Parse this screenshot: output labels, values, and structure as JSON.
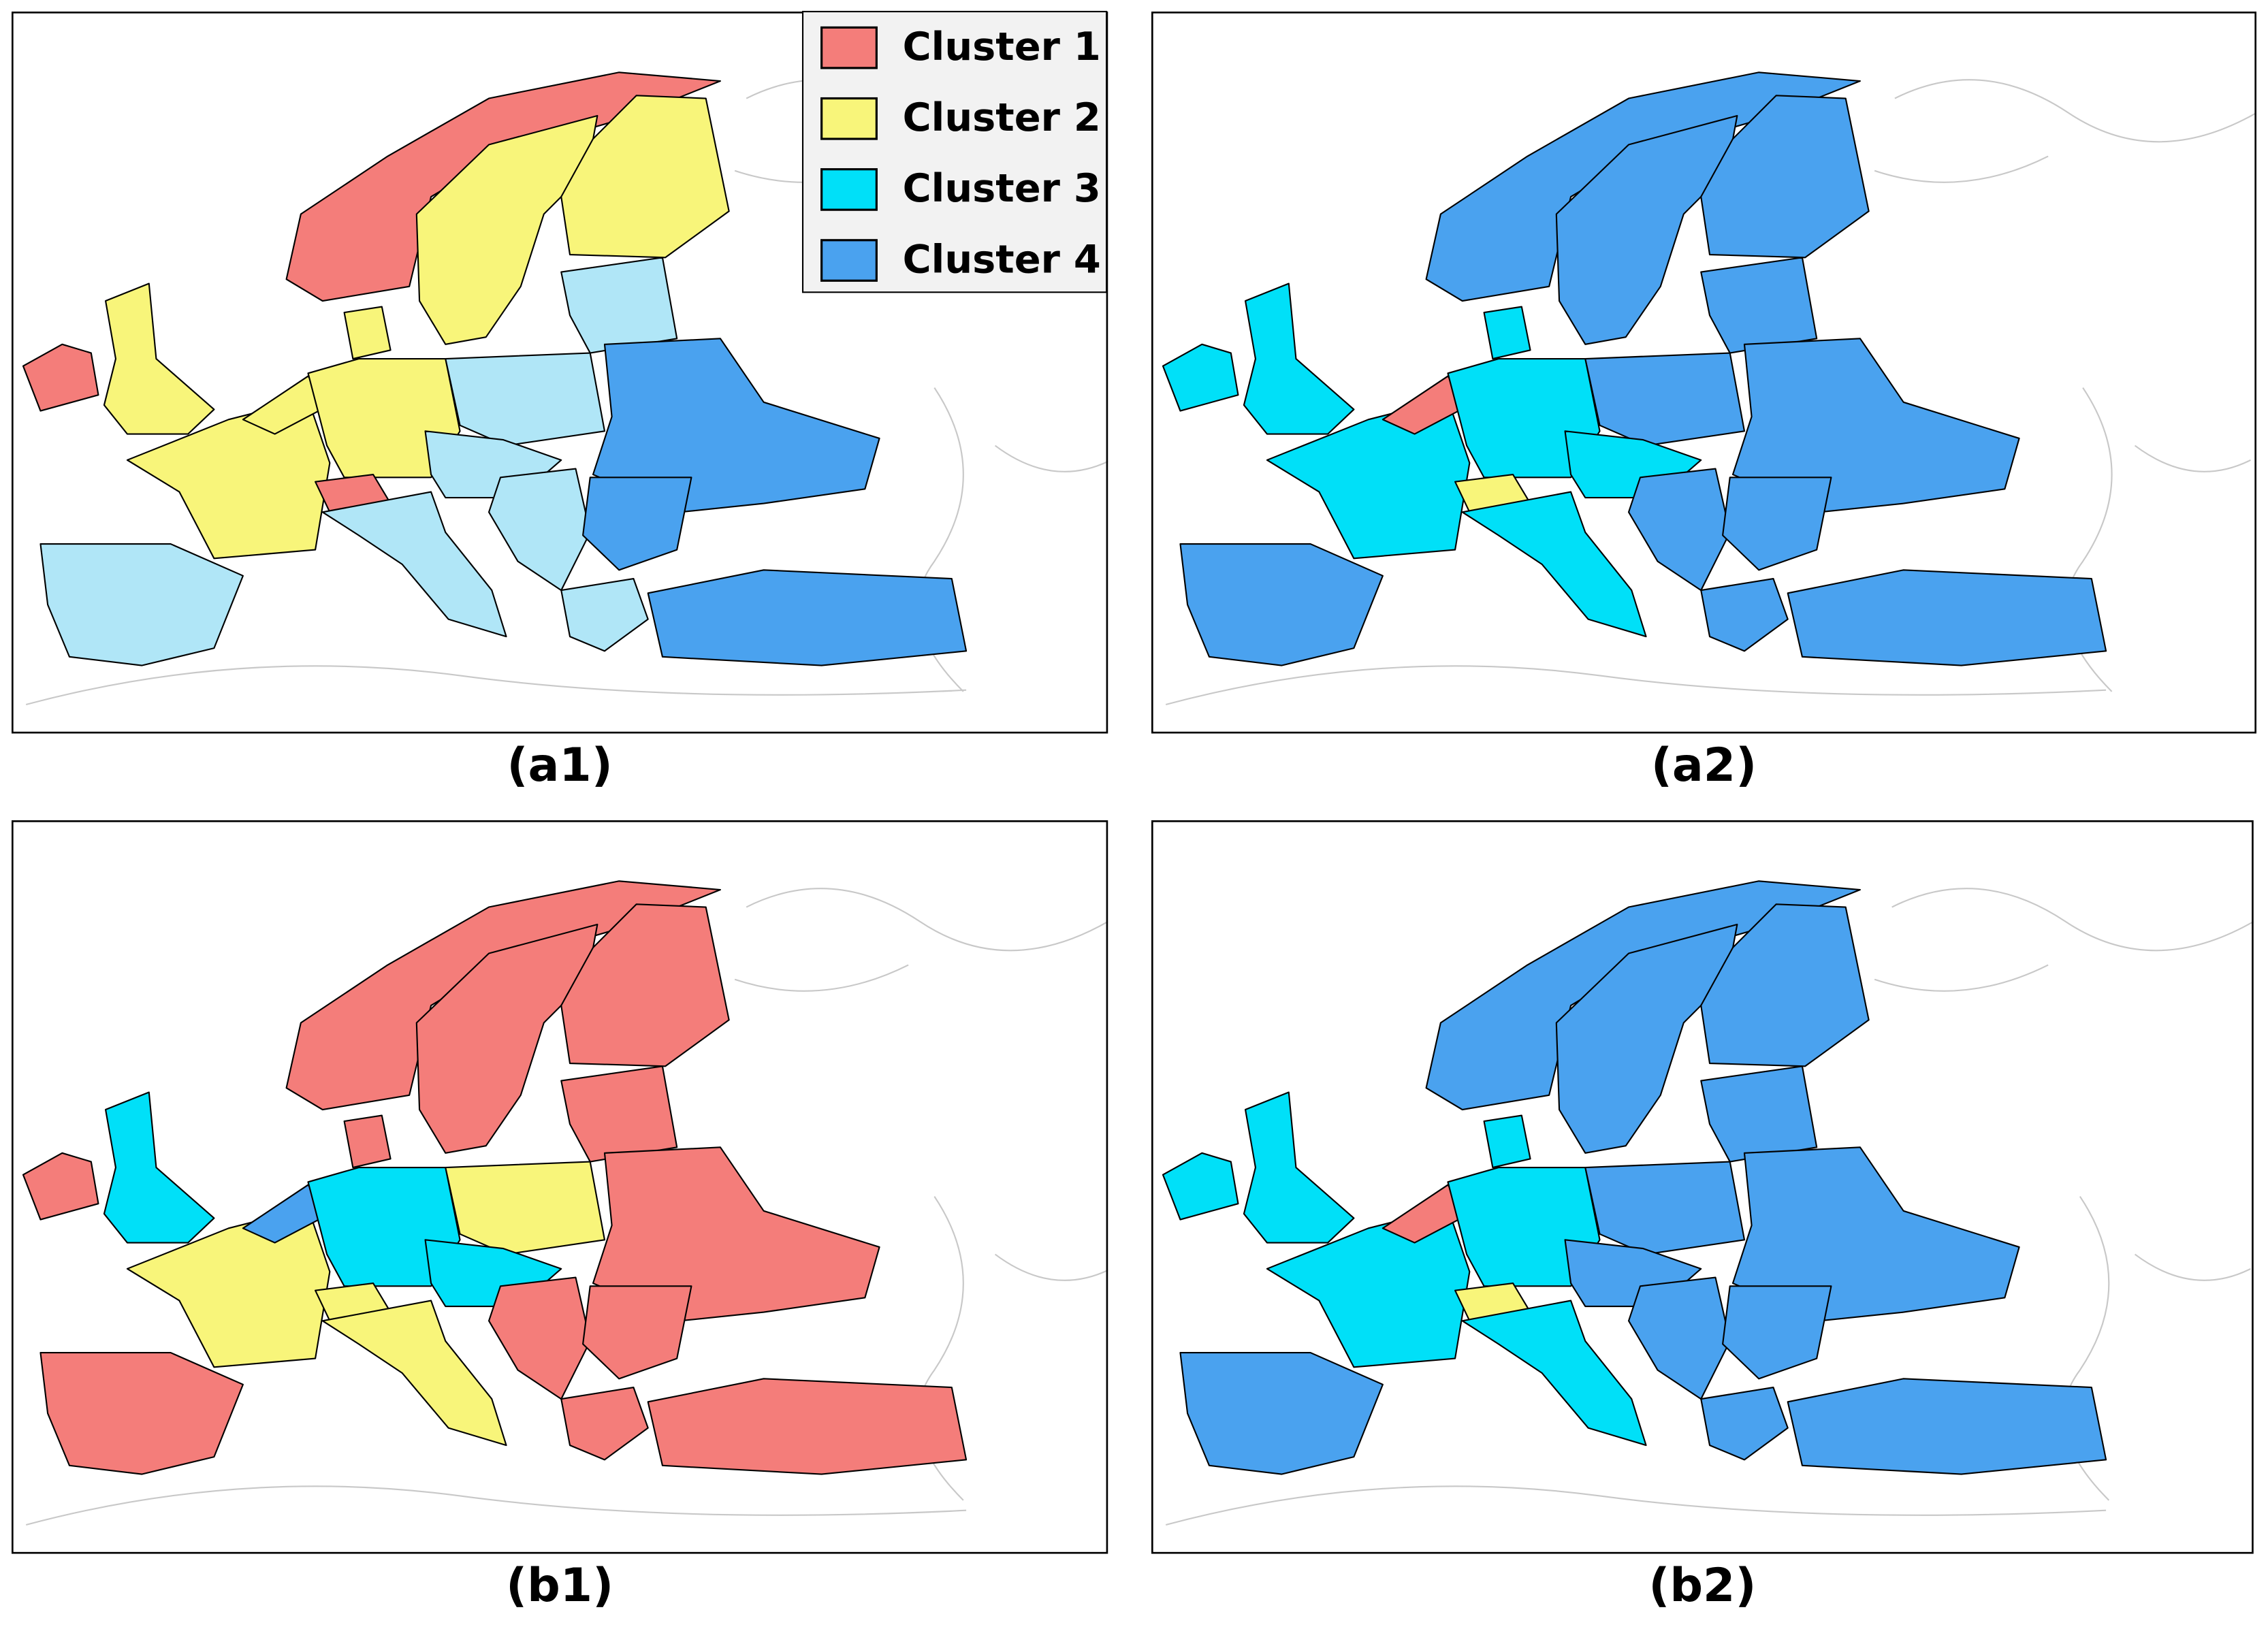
{
  "legend": [
    {
      "name": "Cluster 1",
      "color": "#f47d7a"
    },
    {
      "name": "Cluster 2",
      "color": "#f8f57a"
    },
    {
      "name": "Cluster 3",
      "color": "#00e0f8"
    },
    {
      "name": "Cluster 4",
      "color": "#4aa2ef"
    }
  ],
  "panels": [
    {
      "label": "(a1)"
    },
    {
      "label": "(a2)"
    },
    {
      "label": "(b1)"
    },
    {
      "label": "(b2)"
    }
  ]
}
